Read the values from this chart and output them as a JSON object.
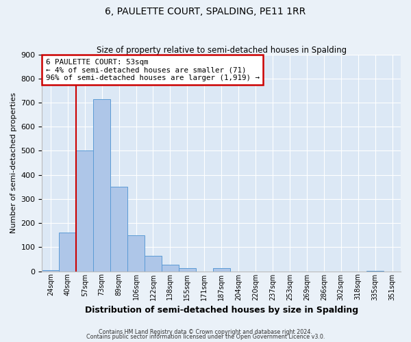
{
  "title": "6, PAULETTE COURT, SPALDING, PE11 1RR",
  "subtitle": "Size of property relative to semi-detached houses in Spalding",
  "xlabel": "Distribution of semi-detached houses by size in Spalding",
  "ylabel": "Number of semi-detached properties",
  "bar_labels": [
    "24sqm",
    "40sqm",
    "57sqm",
    "73sqm",
    "89sqm",
    "106sqm",
    "122sqm",
    "138sqm",
    "155sqm",
    "171sqm",
    "187sqm",
    "204sqm",
    "220sqm",
    "237sqm",
    "253sqm",
    "269sqm",
    "286sqm",
    "302sqm",
    "318sqm",
    "335sqm",
    "351sqm"
  ],
  "bar_values": [
    5,
    160,
    500,
    715,
    350,
    148,
    65,
    28,
    12,
    0,
    12,
    0,
    0,
    0,
    0,
    0,
    0,
    0,
    0,
    2,
    0
  ],
  "bar_color": "#aec6e8",
  "bar_edge_color": "#5b9bd5",
  "annotation_title": "6 PAULETTE COURT: 53sqm",
  "annotation_line1": "← 4% of semi-detached houses are smaller (71)",
  "annotation_line2": "96% of semi-detached houses are larger (1,919) →",
  "annotation_box_color": "#ffffff",
  "annotation_box_edge_color": "#cc0000",
  "vline_color": "#cc0000",
  "ylim": [
    0,
    900
  ],
  "yticks": [
    0,
    100,
    200,
    300,
    400,
    500,
    600,
    700,
    800,
    900
  ],
  "footer1": "Contains HM Land Registry data © Crown copyright and database right 2024.",
  "footer2": "Contains public sector information licensed under the Open Government Licence v3.0.",
  "bg_color": "#eaf1f8",
  "plot_bg_color": "#dce8f5"
}
